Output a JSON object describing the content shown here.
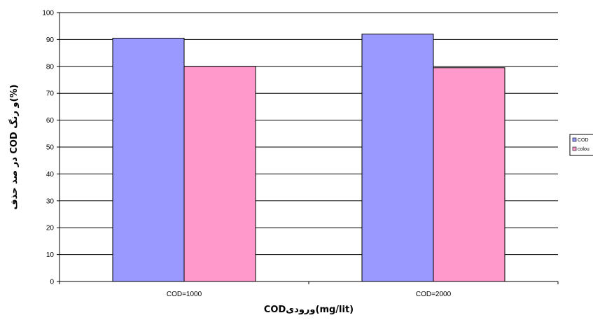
{
  "chart_data": {
    "type": "bar",
    "categories": [
      "COD=1000",
      "COD=2000"
    ],
    "series": [
      {
        "name": "COD",
        "values": [
          90.5,
          92
        ],
        "color": "#9999ff"
      },
      {
        "name": "colou",
        "values": [
          80,
          79.5
        ],
        "color": "#ff99cc"
      }
    ],
    "xlabel": "CODورودی(mg/lit)",
    "ylabel": "در صد حذف COD و رنگ(%)",
    "ylim": [
      0,
      100
    ],
    "yticks": [
      0,
      10,
      20,
      30,
      40,
      50,
      60,
      70,
      80,
      90,
      100
    ],
    "grid": true,
    "legend": "right"
  }
}
